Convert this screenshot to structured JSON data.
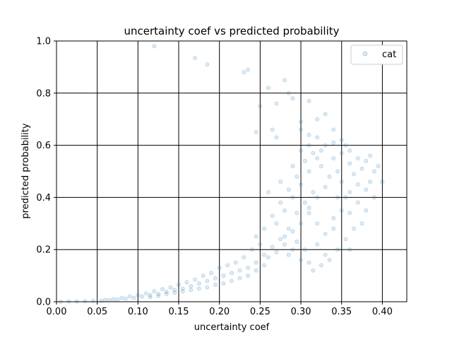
{
  "chart_data": {
    "type": "scatter",
    "title": "uncertainty coef vs predicted probability",
    "xlabel": "uncertainty coef",
    "ylabel": "predicted probability",
    "xlim": [
      0,
      0.43
    ],
    "ylim": [
      0,
      1.0
    ],
    "xticks": [
      "0.00",
      "0.05",
      "0.10",
      "0.15",
      "0.20",
      "0.25",
      "0.30",
      "0.35",
      "0.40"
    ],
    "xtick_values": [
      0,
      0.05,
      0.1,
      0.15,
      0.2,
      0.25,
      0.3,
      0.35,
      0.4
    ],
    "yticks": [
      "0.0",
      "0.2",
      "0.4",
      "0.6",
      "0.8",
      "1.0"
    ],
    "ytick_values": [
      0,
      0.2,
      0.4,
      0.6,
      0.8,
      1.0
    ],
    "grid": true,
    "legend_position": "top-right",
    "point_color": "#1f77b4",
    "point_alpha": 0.15,
    "series": [
      {
        "name": "cat",
        "points": [
          [
            0.12,
            0.98
          ],
          [
            0.17,
            0.935
          ],
          [
            0.185,
            0.91
          ],
          [
            0.23,
            0.88
          ],
          [
            0.235,
            0.89
          ],
          [
            0.26,
            0.82
          ],
          [
            0.28,
            0.85
          ],
          [
            0.285,
            0.8
          ],
          [
            0.25,
            0.75
          ],
          [
            0.27,
            0.76
          ],
          [
            0.29,
            0.78
          ],
          [
            0.31,
            0.77
          ],
          [
            0.33,
            0.72
          ],
          [
            0.32,
            0.7
          ],
          [
            0.3,
            0.69
          ],
          [
            0.265,
            0.66
          ],
          [
            0.245,
            0.65
          ],
          [
            0.31,
            0.64
          ],
          [
            0.34,
            0.66
          ],
          [
            0.35,
            0.62
          ],
          [
            0.355,
            0.6
          ],
          [
            0.36,
            0.58
          ],
          [
            0.37,
            0.55
          ],
          [
            0.38,
            0.54
          ],
          [
            0.385,
            0.56
          ],
          [
            0.39,
            0.5
          ],
          [
            0.4,
            0.46
          ],
          [
            0.37,
            0.45
          ],
          [
            0.36,
            0.42
          ],
          [
            0.345,
            0.4
          ],
          [
            0.38,
            0.35
          ],
          [
            0.375,
            0.3
          ],
          [
            0.36,
            0.2
          ],
          [
            0.34,
            0.32
          ],
          [
            0.33,
            0.18
          ],
          [
            0.3,
            0.16
          ],
          [
            0.31,
            0.15
          ],
          [
            0.32,
            0.22
          ],
          [
            0.29,
            0.2
          ],
          [
            0.28,
            0.25
          ],
          [
            0.27,
            0.3
          ],
          [
            0.28,
            0.35
          ],
          [
            0.29,
            0.4
          ],
          [
            0.3,
            0.45
          ],
          [
            0.31,
            0.5
          ],
          [
            0.32,
            0.55
          ],
          [
            0.325,
            0.52
          ],
          [
            0.335,
            0.48
          ],
          [
            0.315,
            0.42
          ],
          [
            0.305,
            0.38
          ],
          [
            0.295,
            0.34
          ],
          [
            0.285,
            0.28
          ],
          [
            0.275,
            0.24
          ],
          [
            0.265,
            0.21
          ],
          [
            0.255,
            0.18
          ],
          [
            0.245,
            0.15
          ],
          [
            0.235,
            0.13
          ],
          [
            0.225,
            0.12
          ],
          [
            0.215,
            0.11
          ],
          [
            0.205,
            0.1
          ],
          [
            0.195,
            0.09
          ],
          [
            0.185,
            0.08
          ],
          [
            0.175,
            0.07
          ],
          [
            0.165,
            0.06
          ],
          [
            0.155,
            0.05
          ],
          [
            0.145,
            0.045
          ],
          [
            0.135,
            0.038
          ],
          [
            0.125,
            0.03
          ],
          [
            0.115,
            0.025
          ],
          [
            0.105,
            0.02
          ],
          [
            0.095,
            0.015
          ],
          [
            0.085,
            0.012
          ],
          [
            0.075,
            0.008
          ],
          [
            0.065,
            0.006
          ],
          [
            0.055,
            0.004
          ],
          [
            0.045,
            0.003
          ],
          [
            0.035,
            0.002
          ],
          [
            0.025,
            0.001
          ],
          [
            0.015,
            0.001
          ],
          [
            0.005,
            0.0
          ],
          [
            0.26,
            0.42
          ],
          [
            0.275,
            0.46
          ],
          [
            0.29,
            0.52
          ],
          [
            0.3,
            0.58
          ],
          [
            0.31,
            0.6
          ],
          [
            0.325,
            0.58
          ],
          [
            0.34,
            0.55
          ],
          [
            0.345,
            0.5
          ],
          [
            0.35,
            0.46
          ],
          [
            0.355,
            0.4
          ],
          [
            0.35,
            0.35
          ],
          [
            0.34,
            0.28
          ],
          [
            0.33,
            0.26
          ],
          [
            0.32,
            0.3
          ],
          [
            0.31,
            0.34
          ],
          [
            0.3,
            0.3
          ],
          [
            0.29,
            0.27
          ],
          [
            0.28,
            0.22
          ],
          [
            0.27,
            0.19
          ],
          [
            0.26,
            0.17
          ],
          [
            0.25,
            0.22
          ],
          [
            0.24,
            0.2
          ],
          [
            0.23,
            0.17
          ],
          [
            0.22,
            0.15
          ],
          [
            0.21,
            0.14
          ],
          [
            0.2,
            0.13
          ],
          [
            0.19,
            0.11
          ],
          [
            0.18,
            0.1
          ],
          [
            0.17,
            0.085
          ],
          [
            0.16,
            0.075
          ],
          [
            0.15,
            0.065
          ],
          [
            0.14,
            0.055
          ],
          [
            0.13,
            0.048
          ],
          [
            0.12,
            0.04
          ],
          [
            0.11,
            0.032
          ],
          [
            0.1,
            0.025
          ],
          [
            0.09,
            0.02
          ],
          [
            0.08,
            0.015
          ],
          [
            0.07,
            0.01
          ],
          [
            0.06,
            0.007
          ],
          [
            0.375,
            0.51
          ],
          [
            0.365,
            0.49
          ],
          [
            0.385,
            0.46
          ],
          [
            0.39,
            0.4
          ],
          [
            0.395,
            0.52
          ],
          [
            0.38,
            0.43
          ],
          [
            0.37,
            0.38
          ],
          [
            0.36,
            0.34
          ],
          [
            0.365,
            0.28
          ],
          [
            0.355,
            0.24
          ],
          [
            0.345,
            0.2
          ],
          [
            0.335,
            0.16
          ],
          [
            0.325,
            0.14
          ],
          [
            0.315,
            0.12
          ],
          [
            0.305,
            0.2
          ],
          [
            0.295,
            0.23
          ],
          [
            0.285,
            0.18
          ],
          [
            0.245,
            0.25
          ],
          [
            0.255,
            0.28
          ],
          [
            0.265,
            0.33
          ],
          [
            0.275,
            0.38
          ],
          [
            0.285,
            0.43
          ],
          [
            0.295,
            0.48
          ],
          [
            0.305,
            0.54
          ],
          [
            0.315,
            0.57
          ],
          [
            0.255,
            0.14
          ],
          [
            0.245,
            0.12
          ],
          [
            0.235,
            0.1
          ],
          [
            0.225,
            0.09
          ],
          [
            0.215,
            0.08
          ],
          [
            0.205,
            0.07
          ],
          [
            0.195,
            0.065
          ],
          [
            0.185,
            0.055
          ],
          [
            0.175,
            0.05
          ],
          [
            0.165,
            0.045
          ],
          [
            0.155,
            0.04
          ],
          [
            0.145,
            0.035
          ],
          [
            0.135,
            0.03
          ],
          [
            0.125,
            0.022
          ],
          [
            0.115,
            0.018
          ],
          [
            0.27,
            0.63
          ],
          [
            0.3,
            0.66
          ],
          [
            0.32,
            0.63
          ],
          [
            0.33,
            0.6
          ],
          [
            0.34,
            0.61
          ],
          [
            0.35,
            0.57
          ],
          [
            0.36,
            0.53
          ],
          [
            0.33,
            0.44
          ],
          [
            0.32,
            0.4
          ],
          [
            0.31,
            0.36
          ]
        ]
      }
    ]
  }
}
